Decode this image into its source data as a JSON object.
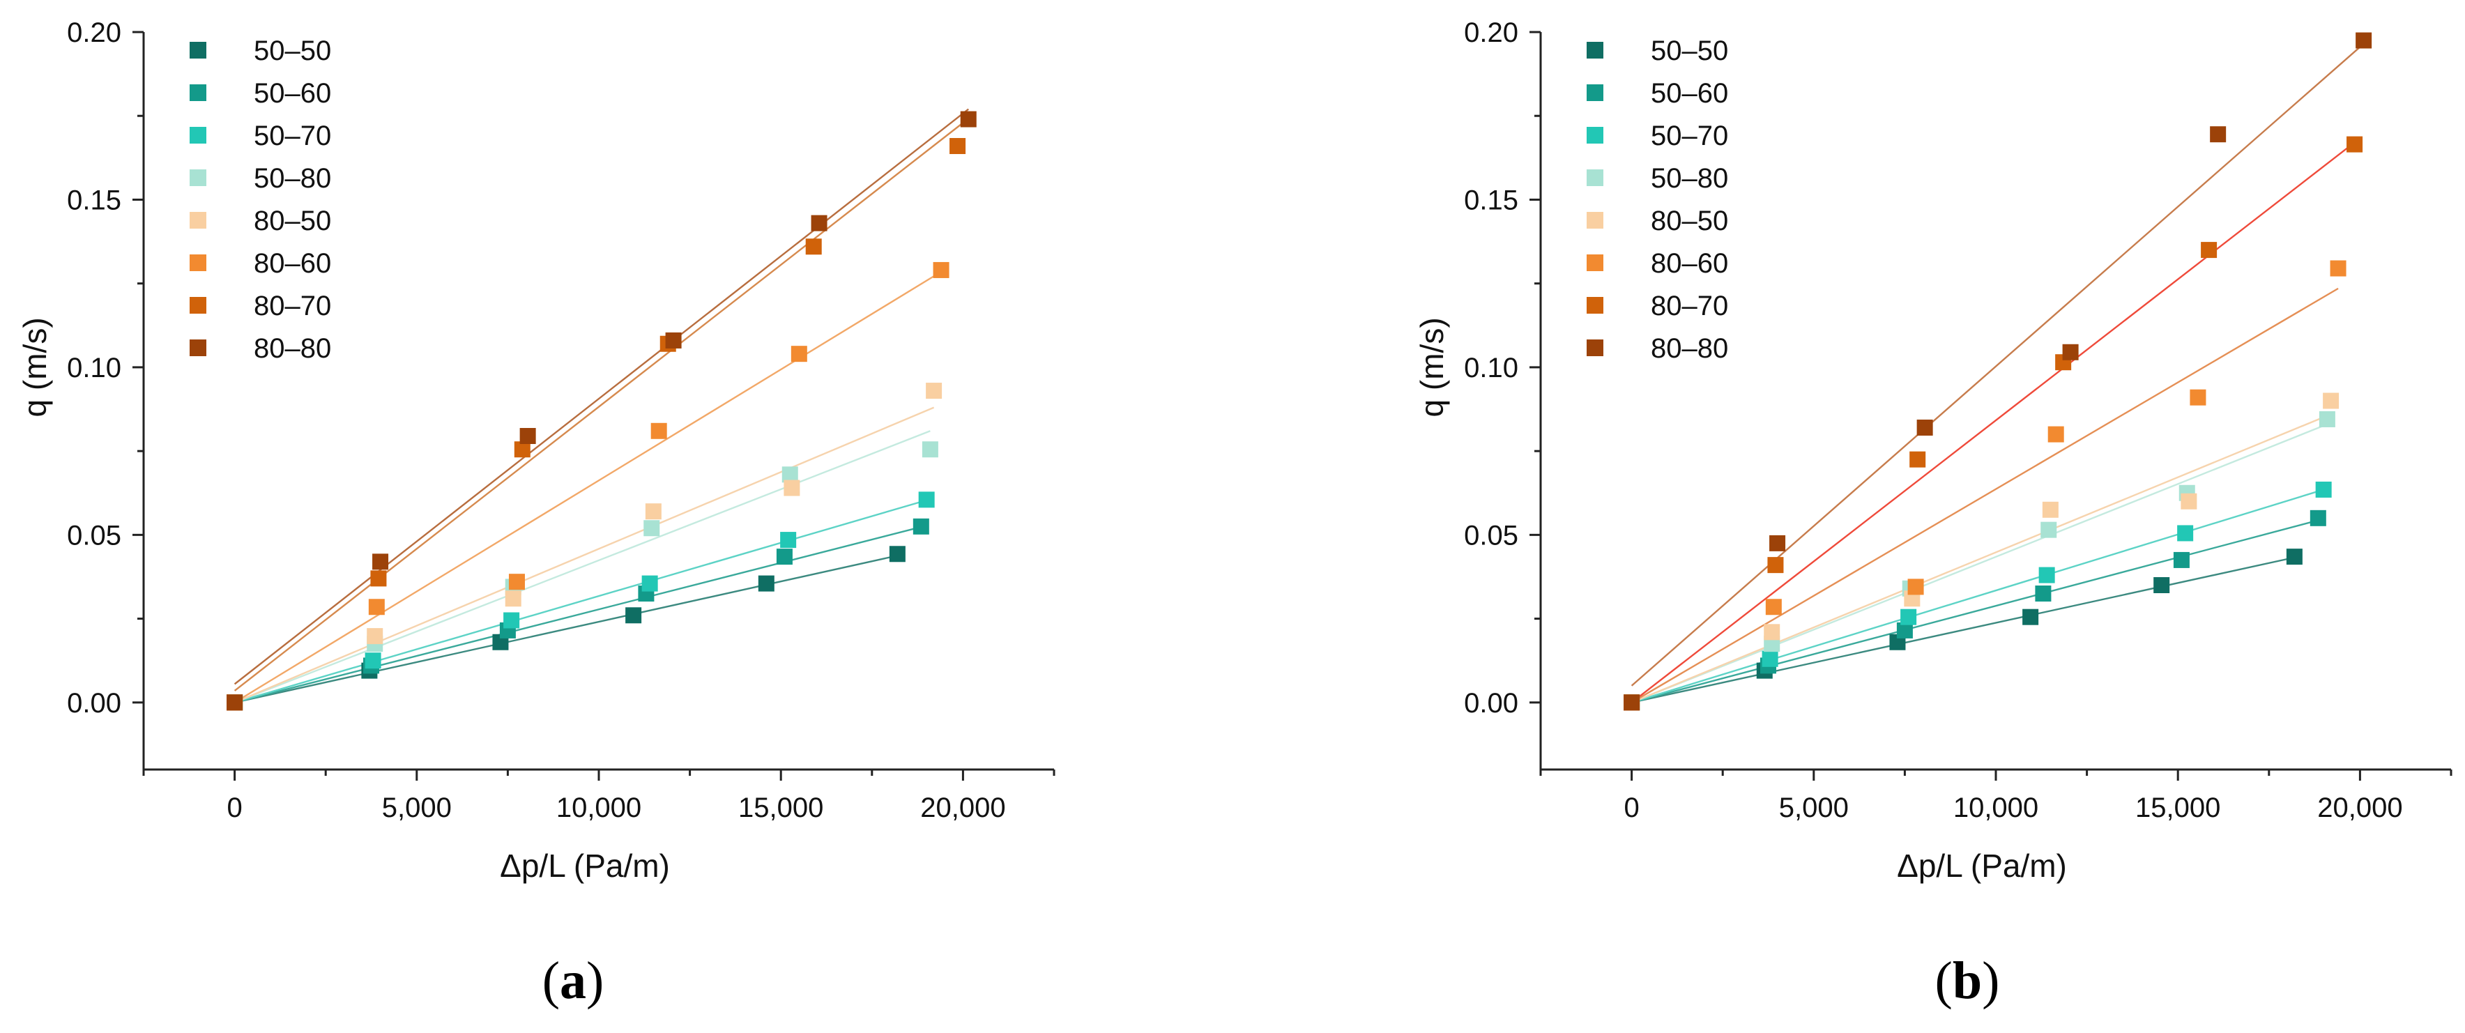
{
  "chart_data": [
    {
      "panel_label": "a",
      "type": "scatter",
      "xlabel": "Δp/L (Pa/m)",
      "ylabel": "q (m/s)",
      "xlim": [
        -2500,
        22500
      ],
      "ylim": [
        -0.02,
        0.2
      ],
      "xticks": [
        0,
        5000,
        10000,
        15000,
        20000
      ],
      "xtick_labels": [
        "0",
        "5,000",
        "10,000",
        "15,000",
        "20,000"
      ],
      "yticks": [
        0.0,
        0.05,
        0.1,
        0.15,
        0.2
      ],
      "ytick_labels": [
        "0.00",
        "0.05",
        "0.10",
        "0.15",
        "0.20"
      ],
      "legend_position": "top-left",
      "series": [
        {
          "name": "50–50",
          "color": "#0f6e63",
          "line_color": "#3c8a80",
          "points": [
            [
              0,
              0.0
            ],
            [
              3700,
              0.0095
            ],
            [
              7300,
              0.018
            ],
            [
              10950,
              0.026
            ],
            [
              14600,
              0.0355
            ],
            [
              18200,
              0.0443
            ]
          ],
          "fit": [
            [
              0,
              0.0
            ],
            [
              18400,
              0.0443
            ]
          ]
        },
        {
          "name": "50–60",
          "color": "#139a8a",
          "line_color": "#3aa99b",
          "points": [
            [
              0,
              0.0
            ],
            [
              3750,
              0.011
            ],
            [
              7500,
              0.0215
            ],
            [
              11300,
              0.0325
            ],
            [
              15100,
              0.0435
            ],
            [
              18850,
              0.0525
            ]
          ],
          "fit": [
            [
              0,
              0.0
            ],
            [
              18900,
              0.0525
            ]
          ]
        },
        {
          "name": "50–70",
          "color": "#22c7b5",
          "line_color": "#5dd3c6",
          "points": [
            [
              0,
              0.0
            ],
            [
              3800,
              0.0125
            ],
            [
              7600,
              0.0245
            ],
            [
              11400,
              0.0355
            ],
            [
              15200,
              0.0485
            ],
            [
              19000,
              0.0605
            ]
          ],
          "fit": [
            [
              0,
              0.0
            ],
            [
              19050,
              0.0605
            ]
          ]
        },
        {
          "name": "50–80",
          "color": "#a8e2d3",
          "line_color": "#c4eadf",
          "points": [
            [
              0,
              0.0
            ],
            [
              3850,
              0.0175
            ],
            [
              7650,
              0.0345
            ],
            [
              11450,
              0.052
            ],
            [
              15250,
              0.068
            ],
            [
              19100,
              0.0755
            ]
          ],
          "fit": [
            [
              0,
              0.0
            ],
            [
              19100,
              0.081
            ]
          ]
        },
        {
          "name": "80–50",
          "color": "#f9cfa1",
          "line_color": "#f6d3ad",
          "points": [
            [
              0,
              0.0
            ],
            [
              3850,
              0.0198
            ],
            [
              7650,
              0.031
            ],
            [
              11500,
              0.057
            ],
            [
              15300,
              0.064
            ],
            [
              19200,
              0.093
            ]
          ],
          "fit": [
            [
              0,
              0.0
            ],
            [
              19200,
              0.088
            ]
          ]
        },
        {
          "name": "80–60",
          "color": "#f28a30",
          "line_color": "#f2a868",
          "points": [
            [
              0,
              0.0
            ],
            [
              3900,
              0.0285
            ],
            [
              7750,
              0.036
            ],
            [
              11650,
              0.081
            ],
            [
              15500,
              0.104
            ],
            [
              19400,
              0.129
            ]
          ],
          "fit": [
            [
              0,
              0.0
            ],
            [
              19400,
              0.1285
            ]
          ]
        },
        {
          "name": "80–70",
          "color": "#d0620a",
          "line_color": "#d68a4e",
          "points": [
            [
              0,
              0.0
            ],
            [
              3950,
              0.037
            ],
            [
              7900,
              0.0755
            ],
            [
              11900,
              0.107
            ],
            [
              15900,
              0.136
            ],
            [
              19850,
              0.166
            ]
          ],
          "fit": [
            [
              0,
              0.0035
            ],
            [
              19950,
              0.1725
            ]
          ]
        },
        {
          "name": "80–80",
          "color": "#9c4209",
          "line_color": "#b86d3e",
          "points": [
            [
              0,
              0.0
            ],
            [
              4000,
              0.042
            ],
            [
              8050,
              0.0795
            ],
            [
              12050,
              0.108
            ],
            [
              16050,
              0.143
            ],
            [
              20150,
              0.174
            ]
          ],
          "fit": [
            [
              0,
              0.0055
            ],
            [
              20150,
              0.177
            ]
          ]
        }
      ]
    },
    {
      "panel_label": "b",
      "type": "scatter",
      "xlabel": "Δp/L (Pa/m)",
      "ylabel": "q (m/s)",
      "xlim": [
        -2500,
        22500
      ],
      "ylim": [
        -0.02,
        0.2
      ],
      "xticks": [
        0,
        5000,
        10000,
        15000,
        20000
      ],
      "xtick_labels": [
        "0",
        "5,000",
        "10,000",
        "15,000",
        "20,000"
      ],
      "yticks": [
        0.0,
        0.05,
        0.1,
        0.15,
        0.2
      ],
      "ytick_labels": [
        "0.00",
        "0.05",
        "0.10",
        "0.15",
        "0.20"
      ],
      "legend_position": "top-left",
      "series": [
        {
          "name": "50–50",
          "color": "#0f6e63",
          "line_color": "#3c8a80",
          "points": [
            [
              0,
              0.0
            ],
            [
              3650,
              0.0095
            ],
            [
              7300,
              0.018
            ],
            [
              10950,
              0.0255
            ],
            [
              14550,
              0.035
            ],
            [
              18200,
              0.0435
            ]
          ],
          "fit": [
            [
              0,
              0.0
            ],
            [
              18300,
              0.0435
            ]
          ]
        },
        {
          "name": "50–60",
          "color": "#139a8a",
          "line_color": "#3aa99b",
          "points": [
            [
              0,
              0.0
            ],
            [
              3750,
              0.011
            ],
            [
              7500,
              0.0215
            ],
            [
              11300,
              0.0325
            ],
            [
              15100,
              0.0425
            ],
            [
              18850,
              0.055
            ]
          ],
          "fit": [
            [
              0,
              0.0
            ],
            [
              18900,
              0.0545
            ]
          ]
        },
        {
          "name": "50–70",
          "color": "#22c7b5",
          "line_color": "#5dd3c6",
          "points": [
            [
              0,
              0.0
            ],
            [
              3800,
              0.013
            ],
            [
              7600,
              0.0255
            ],
            [
              11400,
              0.038
            ],
            [
              15200,
              0.0505
            ],
            [
              19000,
              0.0635
            ]
          ],
          "fit": [
            [
              0,
              0.0
            ],
            [
              19000,
              0.0635
            ]
          ]
        },
        {
          "name": "50–80",
          "color": "#a8e2d3",
          "line_color": "#c4eadf",
          "points": [
            [
              0,
              0.0
            ],
            [
              3850,
              0.0175
            ],
            [
              7650,
              0.034
            ],
            [
              11450,
              0.0515
            ],
            [
              15250,
              0.0625
            ],
            [
              19100,
              0.0845
            ]
          ],
          "fit": [
            [
              0,
              0.0
            ],
            [
              19100,
              0.083
            ]
          ]
        },
        {
          "name": "80–50",
          "color": "#f9cfa1",
          "line_color": "#f6d3ad",
          "points": [
            [
              0,
              0.0
            ],
            [
              3850,
              0.021
            ],
            [
              7700,
              0.031
            ],
            [
              11500,
              0.0575
            ],
            [
              15300,
              0.06
            ],
            [
              19200,
              0.09
            ]
          ],
          "fit": [
            [
              0,
              0.0
            ],
            [
              19200,
              0.086
            ]
          ]
        },
        {
          "name": "80–60",
          "color": "#f28a30",
          "line_color": "#e58f55",
          "points": [
            [
              0,
              0.0
            ],
            [
              3900,
              0.0285
            ],
            [
              7800,
              0.0345
            ],
            [
              11650,
              0.08
            ],
            [
              15550,
              0.091
            ],
            [
              19400,
              0.1295
            ]
          ],
          "fit": [
            [
              0,
              0.0
            ],
            [
              19400,
              0.1235
            ]
          ]
        },
        {
          "name": "80–70",
          "color": "#d0620a",
          "line_color": "#ef4a3a",
          "points": [
            [
              0,
              0.0
            ],
            [
              3950,
              0.041
            ],
            [
              7850,
              0.0725
            ],
            [
              11850,
              0.1015
            ],
            [
              15850,
              0.135
            ],
            [
              19850,
              0.1665
            ]
          ],
          "fit": [
            [
              0,
              0.0
            ],
            [
              19900,
              0.1675
            ]
          ]
        },
        {
          "name": "80–80",
          "color": "#9c4209",
          "line_color": "#c77c4c",
          "points": [
            [
              0,
              0.0
            ],
            [
              4000,
              0.0475
            ],
            [
              8050,
              0.082
            ],
            [
              12050,
              0.1045
            ],
            [
              16100,
              0.1695
            ],
            [
              20100,
              0.1975
            ]
          ],
          "fit": [
            [
              0,
              0.005
            ],
            [
              20100,
              0.1965
            ]
          ]
        }
      ]
    }
  ]
}
